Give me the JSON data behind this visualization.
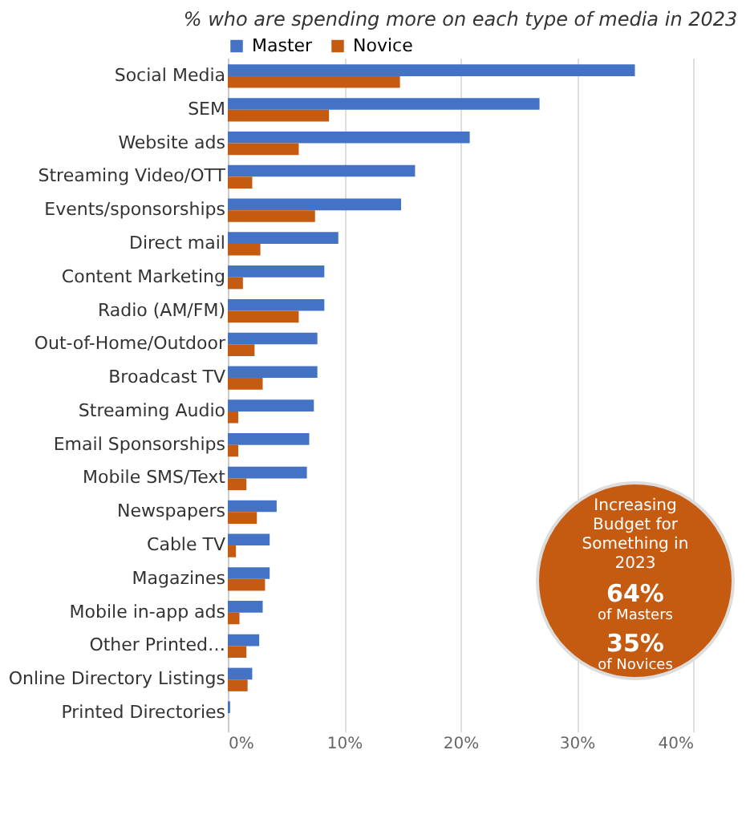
{
  "chart_data": {
    "type": "bar",
    "orientation": "horizontal",
    "title": "% who are spending more on each type of media in 2023",
    "categories": [
      "Social Media",
      "SEM",
      "Website ads",
      "Streaming Video/OTT",
      "Events/sponsorships",
      "Direct mail",
      "Content Marketing",
      "Radio (AM/FM)",
      "Out-of-Home/Outdoor",
      "Broadcast TV",
      "Streaming Audio",
      "Email Sponsorships",
      "Mobile SMS/Text",
      "Newspapers",
      "Cable TV",
      "Magazines",
      "Mobile in-app ads",
      "Other Printed…",
      "Online Directory Listings",
      "Printed Directories"
    ],
    "series": [
      {
        "name": "Master",
        "color": "#4472c4",
        "values": [
          35.0,
          26.8,
          20.8,
          16.1,
          14.9,
          9.5,
          8.3,
          8.3,
          7.7,
          7.7,
          7.4,
          7.0,
          6.8,
          4.2,
          3.6,
          3.6,
          3.0,
          2.7,
          2.1,
          0.2
        ]
      },
      {
        "name": "Novice",
        "color": "#c55a11",
        "values": [
          14.8,
          8.7,
          6.1,
          2.1,
          7.5,
          2.8,
          1.3,
          6.1,
          2.3,
          3.0,
          0.9,
          0.9,
          1.6,
          2.5,
          0.7,
          3.2,
          1.0,
          1.6,
          1.7,
          0
        ]
      }
    ],
    "xlim": [
      0,
      40
    ],
    "xticks": [
      {
        "value": 0,
        "label": "0%"
      },
      {
        "value": 10,
        "label": "10%"
      },
      {
        "value": 20,
        "label": "20%"
      },
      {
        "value": 30,
        "label": "30%"
      },
      {
        "value": 40,
        "label": "40%"
      }
    ],
    "grid": "x",
    "legend": "top",
    "annotations": [
      "Increasing Budget for Something in 2023",
      "64%",
      "of Masters",
      "35%",
      "of Novices"
    ]
  }
}
